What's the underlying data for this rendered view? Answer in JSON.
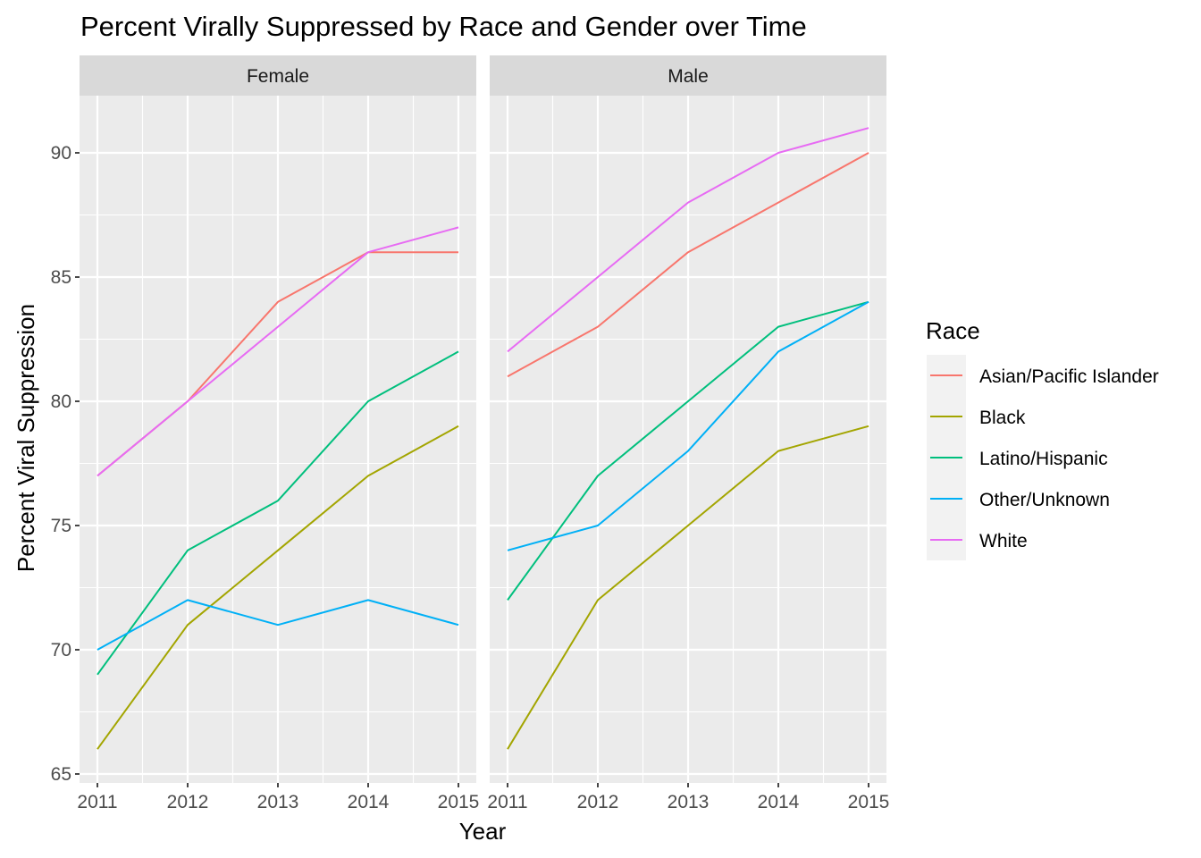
{
  "chart_data": {
    "type": "line",
    "title": "Percent Virally Suppressed by Race and Gender over Time",
    "xlabel": "Year",
    "ylabel": "Percent Viral Suppression",
    "x": [
      2011,
      2012,
      2013,
      2014,
      2015
    ],
    "xlim": [
      2011,
      2015
    ],
    "ylim": [
      65,
      92.3
    ],
    "y_ticks": [
      65,
      70,
      75,
      80,
      85,
      90
    ],
    "grid": true,
    "legend": {
      "title": "Race",
      "placement": "right",
      "entries": [
        "Asian/Pacific Islander",
        "Black",
        "Latino/Hispanic",
        "Other/Unknown",
        "White"
      ]
    },
    "colors": {
      "Asian/Pacific Islander": "#F8766D",
      "Black": "#A3A500",
      "Latino/Hispanic": "#00BF7D",
      "Other/Unknown": "#00B0F6",
      "White": "#E76BF3"
    },
    "panels": [
      {
        "label": "Female",
        "series": [
          {
            "name": "Asian/Pacific Islander",
            "values": [
              77,
              80,
              84,
              86,
              86
            ]
          },
          {
            "name": "Black",
            "values": [
              66,
              71,
              74,
              77,
              79
            ]
          },
          {
            "name": "Latino/Hispanic",
            "values": [
              69,
              74,
              76,
              80,
              82
            ]
          },
          {
            "name": "Other/Unknown",
            "values": [
              70,
              72,
              71,
              72,
              71
            ]
          },
          {
            "name": "White",
            "values": [
              77,
              80,
              83,
              86,
              87
            ]
          }
        ]
      },
      {
        "label": "Male",
        "series": [
          {
            "name": "Asian/Pacific Islander",
            "values": [
              81,
              83,
              86,
              88,
              90
            ]
          },
          {
            "name": "Black",
            "values": [
              66,
              72,
              75,
              78,
              79
            ]
          },
          {
            "name": "Latino/Hispanic",
            "values": [
              72,
              77,
              80,
              83,
              84
            ]
          },
          {
            "name": "Other/Unknown",
            "values": [
              74,
              75,
              78,
              82,
              84
            ]
          },
          {
            "name": "White",
            "values": [
              82,
              85,
              88,
              90,
              91
            ]
          }
        ]
      }
    ]
  }
}
